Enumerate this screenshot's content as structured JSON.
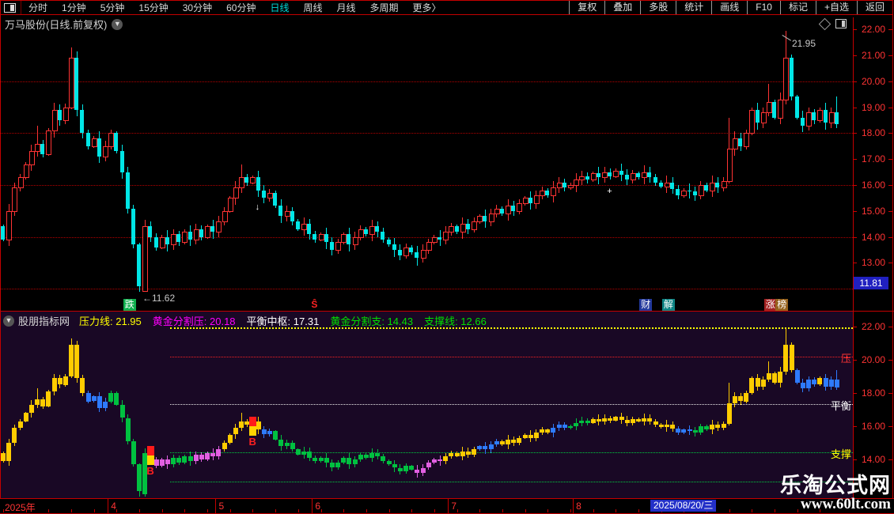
{
  "menu": {
    "left": [
      "分时",
      "1分钟",
      "5分钟",
      "15分钟",
      "30分钟",
      "60分钟",
      "日线",
      "周线",
      "月线",
      "多周期",
      "更多〉"
    ],
    "active": "日线",
    "right": [
      "复权",
      "叠加",
      "多股",
      "统计",
      "画线",
      "F10",
      "标记",
      "+自选",
      "返回"
    ]
  },
  "title": {
    "text": "万马股份(日线.前复权)"
  },
  "main_chart": {
    "axis_labels": [
      "22.00",
      "21.00",
      "20.00",
      "19.00",
      "18.00",
      "17.00",
      "16.00",
      "15.00",
      "14.00",
      "13.00"
    ],
    "axis_values": [
      22,
      21,
      20,
      19,
      18,
      17,
      16,
      15,
      14,
      13
    ],
    "grid_values": [
      20,
      18,
      16,
      14,
      12
    ],
    "last_price_label": "11.81",
    "high_annotation": "21.95",
    "low_annotation": "←11.62",
    "badges": [
      {
        "text": "跌",
        "bar": 22,
        "bg": "#0fae4e",
        "color": "#ffffff"
      },
      {
        "text": "Ŝ",
        "bar": 55,
        "bg": "",
        "color": "#ff2222"
      },
      {
        "text": "财",
        "bar": 113,
        "bg": "#22389b",
        "color": "#ffffff"
      },
      {
        "text": "解",
        "bar": 117,
        "bg": "#0e8585",
        "color": "#ffffff"
      },
      {
        "text": "涨",
        "bar": 135,
        "bg": "#a32222",
        "color": "#ffffff"
      },
      {
        "text": "榜",
        "bar": 137,
        "bg": "#96621d",
        "color": "#ffffff"
      }
    ]
  },
  "indicator": {
    "source": "股朋指标网",
    "stats": [
      {
        "label": "压力线",
        "value": "21.95",
        "color": "#ffff00"
      },
      {
        "label": "黄金分割压",
        "value": "20.18",
        "color": "#ff00ff"
      },
      {
        "label": "平衡中枢",
        "value": "17.31",
        "color": "#ffffff"
      },
      {
        "label": "黄金分割支",
        "value": "14.43",
        "color": "#00e000"
      },
      {
        "label": "支撑线",
        "value": "12.66",
        "color": "#00e000"
      }
    ],
    "axis_labels": [
      "22.00",
      "20.00",
      "18.00",
      "16.00",
      "14.00"
    ],
    "axis_values": [
      22,
      20,
      18,
      16,
      14
    ],
    "levels": [
      {
        "value": 21.95,
        "color": "#ffff00"
      },
      {
        "value": 20.18,
        "color": "#ff2222"
      },
      {
        "value": 17.31,
        "color": "#eeeeee"
      },
      {
        "value": 14.43,
        "color": "#00d040"
      },
      {
        "value": 12.66,
        "color": "#00d040"
      }
    ],
    "side_labels": [
      {
        "text": "压",
        "color": "#ff3333",
        "value": 20.18
      },
      {
        "text": "平衡",
        "color": "#ffffff",
        "value": 17.31
      },
      {
        "text": "支撑",
        "color": "#ffff00",
        "value": 14.43
      }
    ]
  },
  "x_axis": {
    "year_label": "2025年",
    "months": [
      {
        "label": "4",
        "bar": 19
      },
      {
        "label": "5",
        "bar": 38
      },
      {
        "label": "6",
        "bar": 55
      },
      {
        "label": "7",
        "bar": 79
      },
      {
        "label": "8",
        "bar": 101
      }
    ],
    "date_box": "2025/08/20/三"
  },
  "watermark": {
    "line1": "乐淘公式网",
    "line2": "www.60lt.com"
  },
  "chart_data": {
    "type": "candlestick",
    "title": "万马股份 日线 前复权",
    "ylim_main": [
      11.6,
      22.4
    ],
    "ylim_indicator": [
      11.7,
      22.0
    ],
    "closes": [
      13.9,
      15.0,
      15.9,
      16.3,
      16.8,
      17.3,
      17.6,
      17.2,
      18.1,
      18.9,
      18.5,
      19.0,
      20.9,
      18.9,
      18.0,
      17.5,
      17.8,
      17.1,
      17.5,
      18.0,
      17.3,
      16.5,
      15.1,
      13.7,
      12.1,
      14.4,
      14.0,
      13.6,
      14.0,
      13.7,
      14.1,
      13.8,
      14.2,
      13.9,
      14.3,
      14.0,
      14.4,
      14.2,
      14.6,
      15.0,
      15.5,
      15.9,
      16.3,
      16.1,
      16.3,
      15.8,
      15.5,
      15.7,
      15.2,
      14.8,
      15.0,
      14.6,
      14.3,
      14.5,
      14.1,
      13.9,
      14.1,
      13.8,
      13.5,
      13.8,
      14.1,
      13.7,
      14.0,
      14.3,
      14.1,
      14.4,
      14.2,
      13.9,
      13.7,
      13.5,
      13.3,
      13.6,
      13.4,
      13.2,
      13.5,
      13.8,
      14.0,
      13.9,
      14.2,
      14.4,
      14.2,
      14.5,
      14.3,
      14.6,
      14.8,
      14.6,
      14.9,
      15.1,
      14.9,
      15.2,
      15.0,
      15.3,
      15.5,
      15.3,
      15.6,
      15.8,
      15.6,
      15.9,
      16.1,
      15.9,
      16.0,
      16.2,
      16.35,
      16.2,
      16.45,
      16.3,
      16.5,
      16.35,
      16.55,
      16.4,
      16.2,
      16.45,
      16.3,
      16.5,
      16.3,
      16.1,
      15.95,
      16.1,
      15.85,
      15.6,
      15.8,
      15.75,
      15.6,
      16.0,
      15.8,
      16.1,
      15.9,
      16.15,
      17.4,
      17.8,
      17.5,
      18.0,
      18.9,
      18.4,
      18.8,
      19.2,
      18.6,
      19.3,
      20.9,
      19.4,
      18.6,
      18.3,
      18.8,
      18.5,
      18.9,
      18.4,
      18.8,
      18.35
    ],
    "wick_overrides": {
      "0": {
        "o": 14.4
      },
      "6": {
        "h": 18.3
      },
      "12": {
        "h": 21.3
      },
      "24": {
        "l": 11.62
      },
      "25": {
        "o": 11.9
      },
      "42": {
        "h": 16.8
      },
      "73": {
        "l": 12.9
      },
      "128": {
        "h": 18.6
      },
      "135": {
        "h": 19.9
      },
      "138": {
        "h": 21.95
      },
      "147": {
        "h": 19.4
      }
    },
    "color_segments": [
      [
        0,
        14,
        "yellow"
      ],
      [
        15,
        18,
        "blue"
      ],
      [
        19,
        25,
        "green"
      ],
      [
        26,
        29,
        "magenta"
      ],
      [
        30,
        33,
        "green"
      ],
      [
        34,
        38,
        "magenta"
      ],
      [
        39,
        45,
        "yellow"
      ],
      [
        46,
        47,
        "blue"
      ],
      [
        48,
        72,
        "green"
      ],
      [
        73,
        77,
        "magenta"
      ],
      [
        78,
        83,
        "yellow"
      ],
      [
        84,
        87,
        "blue"
      ],
      [
        88,
        96,
        "yellow"
      ],
      [
        97,
        99,
        "blue"
      ],
      [
        100,
        103,
        "green"
      ],
      [
        104,
        118,
        "yellow"
      ],
      [
        119,
        121,
        "blue"
      ],
      [
        122,
        124,
        "green"
      ],
      [
        125,
        139,
        "yellow"
      ],
      [
        140,
        143,
        "blue"
      ],
      [
        144,
        144,
        "yellow"
      ],
      [
        145,
        147,
        "blue"
      ]
    ],
    "buy_signals": [
      {
        "bar": 26,
        "top_price": 14.8,
        "label": "B"
      },
      {
        "bar": 44,
        "top_price": 16.55,
        "label": "B"
      }
    ],
    "white_markers": [
      {
        "bar": 45,
        "price": 15.1,
        "glyph": "↓"
      },
      {
        "bar": 107,
        "price": 15.7,
        "glyph": "+"
      }
    ],
    "colors": {
      "up": "#ff3333",
      "down": "#00e6e6",
      "yellow": "#ffcc00",
      "blue": "#2e7bff",
      "green": "#00c140",
      "magenta": "#e25fe2",
      "grid": "#b40000",
      "panel_bg": "#190825",
      "axis_text": "#ff3434"
    }
  }
}
